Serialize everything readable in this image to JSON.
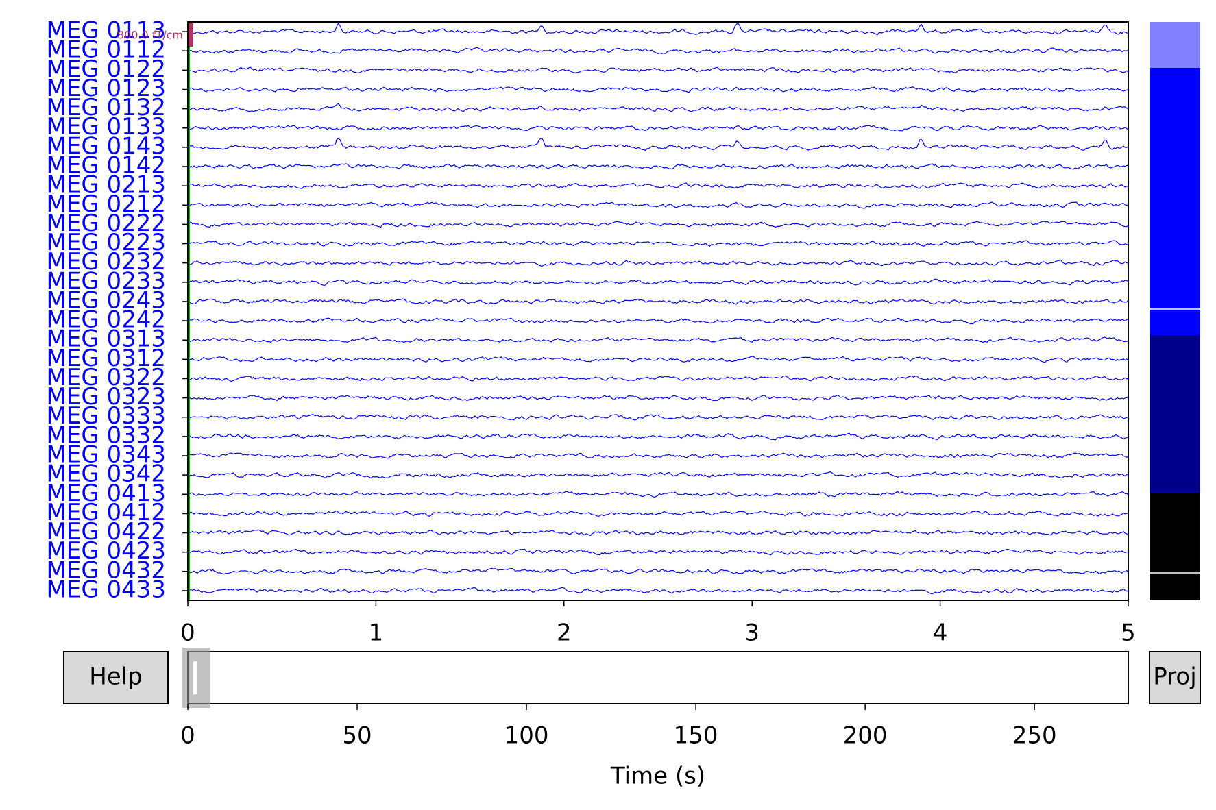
{
  "channels": [
    "MEG 0113",
    "MEG 0112",
    "MEG 0122",
    "MEG 0123",
    "MEG 0132",
    "MEG 0133",
    "MEG 0143",
    "MEG 0142",
    "MEG 0213",
    "MEG 0212",
    "MEG 0222",
    "MEG 0223",
    "MEG 0232",
    "MEG 0233",
    "MEG 0243",
    "MEG 0242",
    "MEG 0313",
    "MEG 0312",
    "MEG 0322",
    "MEG 0323",
    "MEG 0333",
    "MEG 0332",
    "MEG 0343",
    "MEG 0342",
    "MEG 0413",
    "MEG 0412",
    "MEG 0422",
    "MEG 0423",
    "MEG 0432",
    "MEG 0433"
  ],
  "scale_label": "800.0 fT/cm",
  "time_axis": {
    "xlim": [
      0,
      5
    ],
    "xticks": [
      0,
      1,
      2,
      3,
      4,
      5
    ]
  },
  "overview_axis": {
    "xlim": [
      0,
      277.7
    ],
    "xticks": [
      0,
      50,
      100,
      150,
      200,
      250
    ],
    "xlabel": "Time (s)"
  },
  "buttons": {
    "help": "Help",
    "proj": "Proj"
  }
}
